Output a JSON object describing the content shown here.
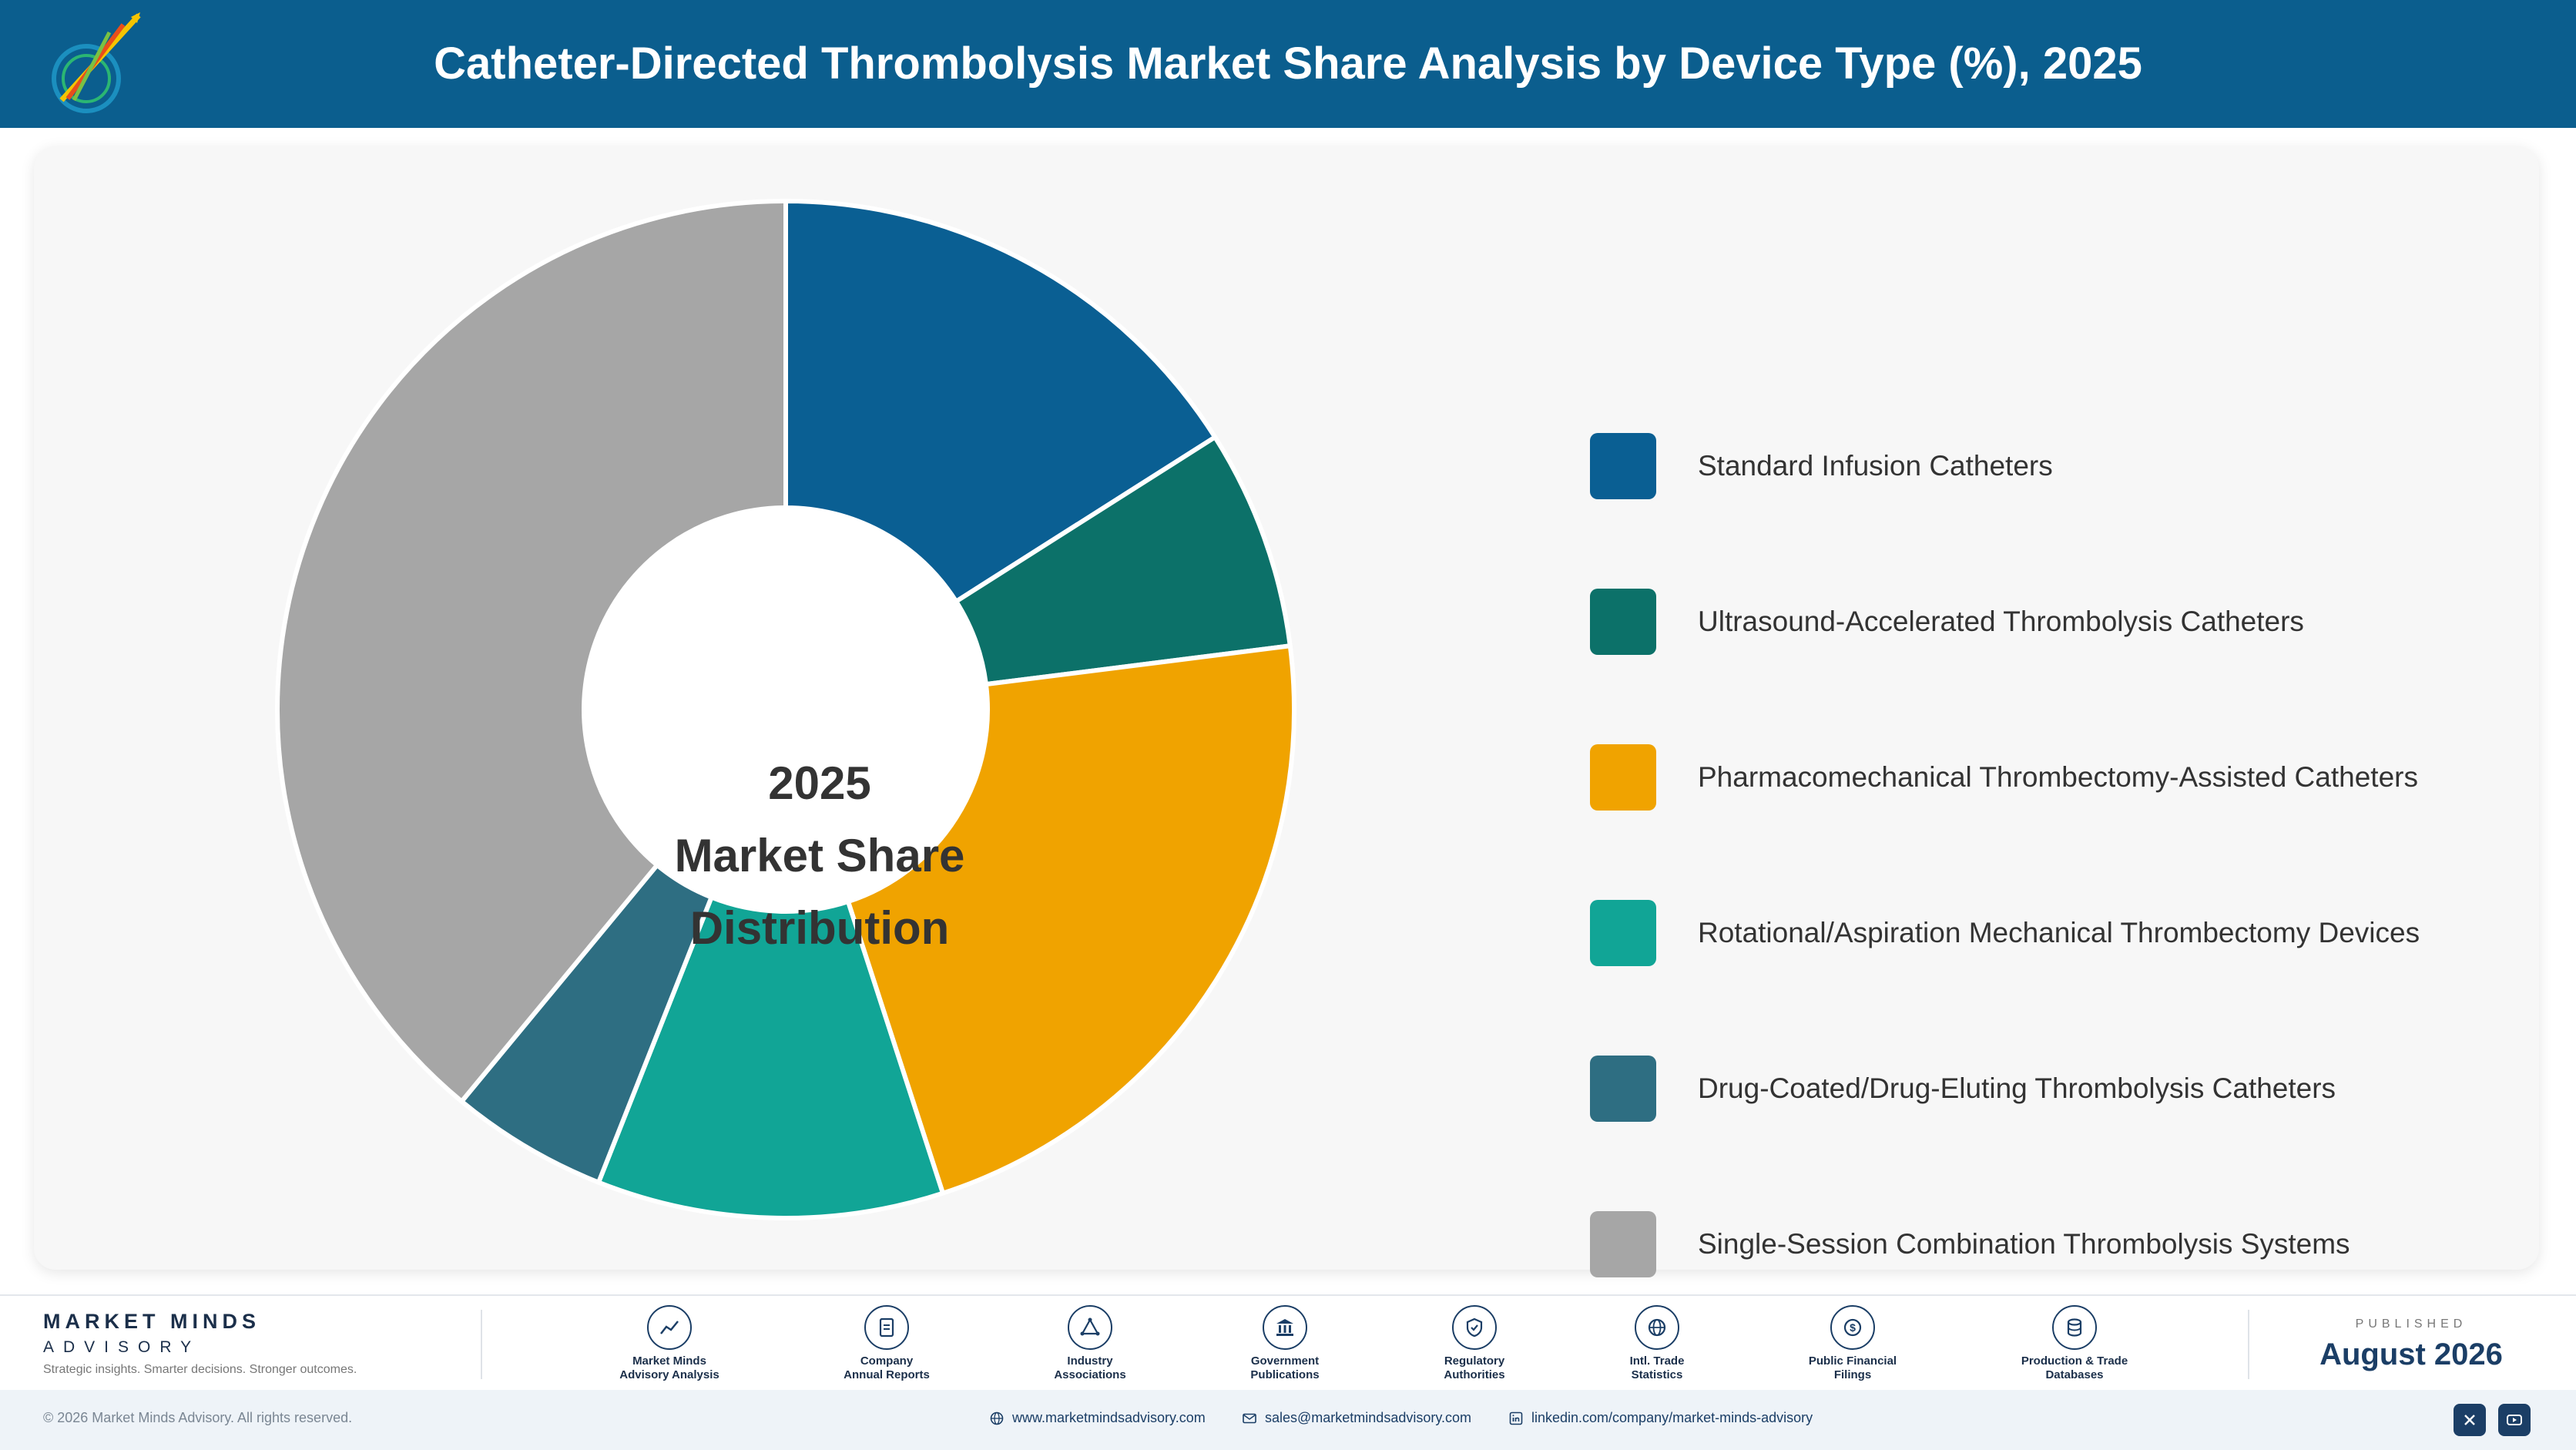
{
  "header": {
    "title": "Catheter-Directed Thrombolysis Market Share Analysis by Device Type (%), 2025",
    "logo_icon": "brand-logo-icon"
  },
  "chart_data": {
    "type": "pie",
    "title": "Catheter-Directed Thrombolysis Market Share Analysis by Device Type (%), 2025",
    "center_label": [
      "2025",
      "Market Share",
      "Distribution"
    ],
    "categories": [
      "Standard Infusion Catheters",
      "Ultrasound-Accelerated Thrombolysis Catheters",
      "Pharmacomechanical Thrombectomy-Assisted Catheters",
      "Rotational/Aspiration Mechanical Thrombectomy Devices",
      "Drug-Coated/Drug-Eluting Thrombolysis Catheters",
      "Single-Session Combination Thrombolysis Systems"
    ],
    "values": [
      16,
      7,
      22,
      11,
      5,
      39
    ],
    "colors": [
      "#0a5f93",
      "#0c7169",
      "#f0a300",
      "#11a596",
      "#2e6e82",
      "#a6a6a6"
    ],
    "legend_position": "right"
  },
  "footer": {
    "brand_name": "MARKET MINDS",
    "brand_sub": "ADVISORY",
    "tagline": "Strategic insights. Smarter decisions. Stronger outcomes.",
    "sources": [
      {
        "line1": "Market Minds",
        "line2": "Advisory Analysis",
        "icon": "chart-trend-icon"
      },
      {
        "line1": "Company",
        "line2": "Annual Reports",
        "icon": "document-icon"
      },
      {
        "line1": "Industry",
        "line2": "Associations",
        "icon": "network-icon"
      },
      {
        "line1": "Government",
        "line2": "Publications",
        "icon": "government-building-icon"
      },
      {
        "line1": "Regulatory",
        "line2": "Authorities",
        "icon": "shield-check-icon"
      },
      {
        "line1": "Intl. Trade",
        "line2": "Statistics",
        "icon": "globe-icon"
      },
      {
        "line1": "Public Financial",
        "line2": "Filings",
        "icon": "currency-icon"
      },
      {
        "line1": "Production & Trade",
        "line2": "Databases",
        "icon": "database-icon"
      }
    ],
    "published_label": "PUBLISHED",
    "published_date": "August 2026"
  },
  "bottom": {
    "copyright": "© 2026 Market Minds Advisory. All rights reserved.",
    "website": "www.marketmindsadvisory.com",
    "email": "sales@marketmindsadvisory.com",
    "linkedin": "linkedin.com/company/market-minds-advisory",
    "social_icons": [
      "x-icon",
      "youtube-icon"
    ]
  }
}
